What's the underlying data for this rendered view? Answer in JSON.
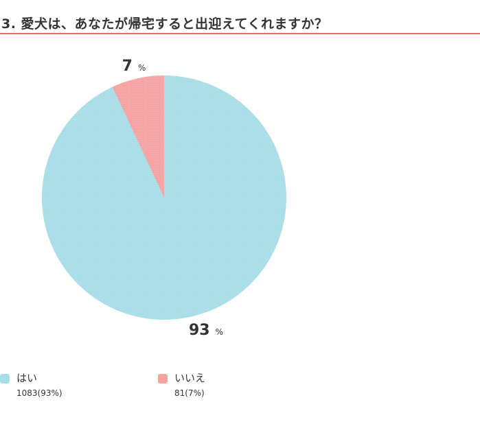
{
  "question": {
    "title": "3. 愛犬は、あなたが帰宅すると出迎えてくれますか？"
  },
  "colors": {
    "accent_rule": "#e8676b",
    "yes": "#a9dde8",
    "no": "#f5a3a3"
  },
  "chart_data": {
    "type": "pie",
    "slices": [
      {
        "label": "はい",
        "count": 1083,
        "percent": 93,
        "percent_text": "93",
        "count_text": "1083(93%)",
        "color": "#a9dde8"
      },
      {
        "label": "いいえ",
        "count": 81,
        "percent": 7,
        "percent_text": "7",
        "count_text": "81(7%)",
        "color": "#f5a3a3"
      }
    ],
    "percent_sign": "%",
    "legend_position": "bottom-left"
  }
}
